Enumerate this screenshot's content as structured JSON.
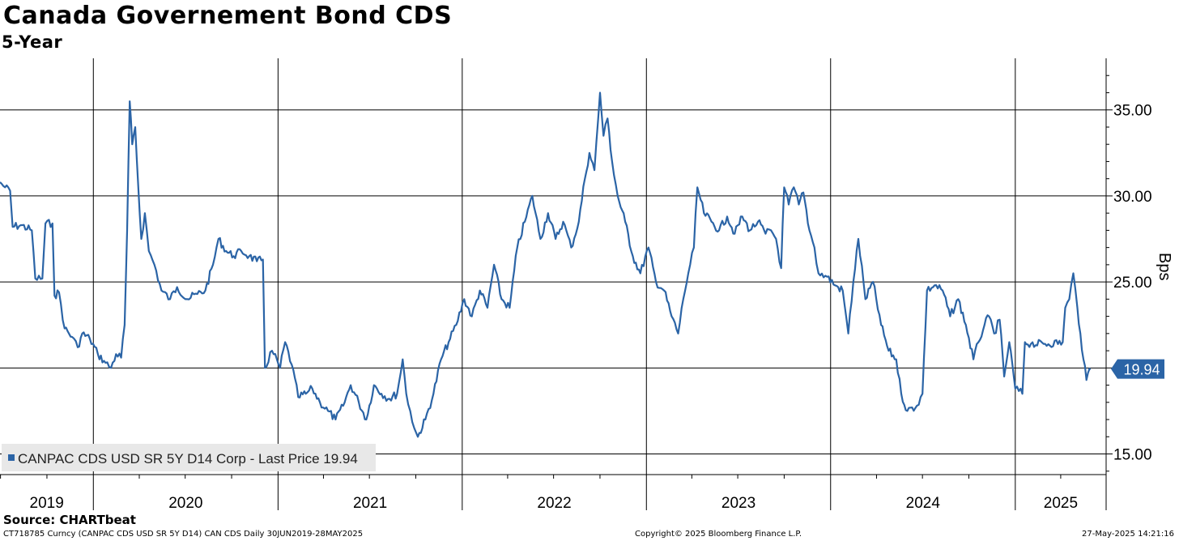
{
  "title": "Canada Governement Bond CDS",
  "subtitle": "5-Year",
  "source": "Source: CHARTbeat",
  "footer": {
    "left": "CT718785 Curncy (CANPAC CDS USD SR 5Y D14) CAN CDS  Daily 30JUN2019-28MAY2025",
    "center": "Copyright© 2025 Bloomberg Finance L.P.",
    "right": "27-May-2025 14:21:16"
  },
  "colors": {
    "series": "#2b64a6",
    "last_price_tag": "#2b64a6",
    "grid": "#000000"
  },
  "chart_data": {
    "type": "line",
    "ylabel": "Bps",
    "ylim": [
      13.8,
      38
    ],
    "yticks": [
      15,
      20,
      25,
      30,
      35
    ],
    "ytick_labels": [
      "15.00",
      "",
      "25.00",
      "30.00",
      "35.00"
    ],
    "xlim": [
      "2019-06-30",
      "2025-06-30"
    ],
    "year_labels": [
      "2019",
      "2020",
      "2021",
      "2022",
      "2023",
      "2024",
      "2025"
    ],
    "grid": true,
    "legend_position": "bottom-left",
    "legend": "CANPAC CDS USD SR 5Y D14 Corp - Last Price 19.94",
    "last_price_label": "19.94",
    "last_price": 19.94,
    "series": [
      {
        "name": "CANPAC CDS USD SR 5Y D14 Corp - Last Price",
        "points": [
          [
            "2019-06-30",
            30.8
          ],
          [
            "2019-07-10",
            30.5
          ],
          [
            "2019-07-20",
            30.3
          ],
          [
            "2019-07-25",
            28.2
          ],
          [
            "2019-08-10",
            28.3
          ],
          [
            "2019-09-01",
            28.0
          ],
          [
            "2019-09-08",
            25.2
          ],
          [
            "2019-09-22",
            25.2
          ],
          [
            "2019-09-28",
            28.4
          ],
          [
            "2019-10-12",
            28.4
          ],
          [
            "2019-10-16",
            24.2
          ],
          [
            "2019-10-25",
            24.4
          ],
          [
            "2019-11-05",
            22.3
          ],
          [
            "2019-11-20",
            21.8
          ],
          [
            "2019-12-01",
            21.2
          ],
          [
            "2019-12-10",
            22.0
          ],
          [
            "2019-12-25",
            21.7
          ],
          [
            "2020-01-10",
            20.8
          ],
          [
            "2020-01-25",
            20.3
          ],
          [
            "2020-02-05",
            20.0
          ],
          [
            "2020-02-15",
            20.8
          ],
          [
            "2020-02-25",
            20.6
          ],
          [
            "2020-03-03",
            22.5
          ],
          [
            "2020-03-08",
            28.0
          ],
          [
            "2020-03-13",
            35.5
          ],
          [
            "2020-03-18",
            33.0
          ],
          [
            "2020-03-24",
            34.0
          ],
          [
            "2020-03-30",
            30.5
          ],
          [
            "2020-04-05",
            27.5
          ],
          [
            "2020-04-12",
            29.0
          ],
          [
            "2020-04-20",
            26.8
          ],
          [
            "2020-05-01",
            26.0
          ],
          [
            "2020-05-15",
            24.5
          ],
          [
            "2020-06-01",
            24.0
          ],
          [
            "2020-06-15",
            24.7
          ],
          [
            "2020-07-05",
            24.0
          ],
          [
            "2020-07-25",
            24.3
          ],
          [
            "2020-08-10",
            24.5
          ],
          [
            "2020-08-25",
            26.0
          ],
          [
            "2020-09-05",
            27.5
          ],
          [
            "2020-09-20",
            26.8
          ],
          [
            "2020-10-05",
            26.5
          ],
          [
            "2020-10-20",
            26.8
          ],
          [
            "2020-11-05",
            26.5
          ],
          [
            "2020-11-20",
            26.2
          ],
          [
            "2020-12-02",
            26.3
          ],
          [
            "2020-12-06",
            20.0
          ],
          [
            "2020-12-20",
            21.0
          ],
          [
            "2021-01-05",
            20.0
          ],
          [
            "2021-01-15",
            21.5
          ],
          [
            "2021-01-28",
            20.2
          ],
          [
            "2021-02-10",
            18.3
          ],
          [
            "2021-02-25",
            18.5
          ],
          [
            "2021-03-10",
            18.8
          ],
          [
            "2021-03-25",
            18.0
          ],
          [
            "2021-04-10",
            17.5
          ],
          [
            "2021-04-25",
            17.0
          ],
          [
            "2021-05-10",
            17.8
          ],
          [
            "2021-05-25",
            19.0
          ],
          [
            "2021-06-10",
            18.0
          ],
          [
            "2021-06-25",
            17.0
          ],
          [
            "2021-07-10",
            19.0
          ],
          [
            "2021-07-25",
            18.5
          ],
          [
            "2021-08-10",
            18.2
          ],
          [
            "2021-08-25",
            18.5
          ],
          [
            "2021-09-05",
            20.5
          ],
          [
            "2021-09-12",
            18.5
          ],
          [
            "2021-09-20",
            17.5
          ],
          [
            "2021-09-28",
            16.5
          ],
          [
            "2021-10-05",
            16.0
          ],
          [
            "2021-10-20",
            17.0
          ],
          [
            "2021-11-05",
            18.5
          ],
          [
            "2021-11-20",
            20.5
          ],
          [
            "2021-12-05",
            21.5
          ],
          [
            "2021-12-20",
            22.5
          ],
          [
            "2022-01-05",
            24.0
          ],
          [
            "2022-01-20",
            23.0
          ],
          [
            "2022-02-05",
            24.5
          ],
          [
            "2022-02-20",
            23.5
          ],
          [
            "2022-03-05",
            26.0
          ],
          [
            "2022-03-20",
            24.0
          ],
          [
            "2022-04-05",
            23.5
          ],
          [
            "2022-04-20",
            27.0
          ],
          [
            "2022-05-05",
            28.5
          ],
          [
            "2022-05-20",
            30.0
          ],
          [
            "2022-06-05",
            27.5
          ],
          [
            "2022-06-20",
            29.0
          ],
          [
            "2022-07-05",
            27.5
          ],
          [
            "2022-07-20",
            28.5
          ],
          [
            "2022-08-05",
            27.0
          ],
          [
            "2022-08-20",
            28.5
          ],
          [
            "2022-09-01",
            31.0
          ],
          [
            "2022-09-10",
            32.5
          ],
          [
            "2022-09-20",
            31.5
          ],
          [
            "2022-10-01",
            36.0
          ],
          [
            "2022-10-08",
            33.5
          ],
          [
            "2022-10-16",
            34.5
          ],
          [
            "2022-10-25",
            32.0
          ],
          [
            "2022-11-05",
            30.0
          ],
          [
            "2022-11-20",
            28.5
          ],
          [
            "2022-12-05",
            26.5
          ],
          [
            "2022-12-20",
            25.5
          ],
          [
            "2023-01-05",
            27.0
          ],
          [
            "2023-01-20",
            25.0
          ],
          [
            "2023-02-05",
            24.5
          ],
          [
            "2023-02-20",
            23.0
          ],
          [
            "2023-03-05",
            22.0
          ],
          [
            "2023-03-15",
            24.0
          ],
          [
            "2023-03-25",
            25.5
          ],
          [
            "2023-04-05",
            27.0
          ],
          [
            "2023-04-12",
            30.5
          ],
          [
            "2023-04-25",
            29.0
          ],
          [
            "2023-05-10",
            28.5
          ],
          [
            "2023-05-25",
            28.0
          ],
          [
            "2023-06-10",
            28.8
          ],
          [
            "2023-06-25",
            27.8
          ],
          [
            "2023-07-10",
            28.8
          ],
          [
            "2023-07-25",
            28.0
          ],
          [
            "2023-08-10",
            28.5
          ],
          [
            "2023-08-25",
            27.8
          ],
          [
            "2023-09-05",
            28.0
          ],
          [
            "2023-09-15",
            27.5
          ],
          [
            "2023-09-25",
            25.8
          ],
          [
            "2023-10-01",
            30.5
          ],
          [
            "2023-10-10",
            29.5
          ],
          [
            "2023-10-20",
            30.5
          ],
          [
            "2023-10-30",
            29.5
          ],
          [
            "2023-11-08",
            30.2
          ],
          [
            "2023-11-20",
            28.0
          ],
          [
            "2023-11-30",
            27.0
          ],
          [
            "2023-12-08",
            25.5
          ],
          [
            "2023-12-25",
            25.3
          ],
          [
            "2024-01-10",
            24.8
          ],
          [
            "2024-01-25",
            24.5
          ],
          [
            "2024-02-05",
            22.0
          ],
          [
            "2024-02-15",
            25.0
          ],
          [
            "2024-02-25",
            27.5
          ],
          [
            "2024-03-10",
            24.0
          ],
          [
            "2024-03-25",
            25.0
          ],
          [
            "2024-04-10",
            22.5
          ],
          [
            "2024-04-25",
            21.0
          ],
          [
            "2024-05-10",
            20.5
          ],
          [
            "2024-05-20",
            18.5
          ],
          [
            "2024-06-01",
            17.5
          ],
          [
            "2024-06-20",
            17.8
          ],
          [
            "2024-07-01",
            18.5
          ],
          [
            "2024-07-10",
            24.5
          ],
          [
            "2024-07-25",
            24.8
          ],
          [
            "2024-08-10",
            24.5
          ],
          [
            "2024-08-25",
            23.0
          ],
          [
            "2024-09-10",
            24.0
          ],
          [
            "2024-09-25",
            22.5
          ],
          [
            "2024-10-10",
            20.5
          ],
          [
            "2024-10-20",
            21.5
          ],
          [
            "2024-11-01",
            22.5
          ],
          [
            "2024-11-10",
            23.0
          ],
          [
            "2024-11-20",
            22.0
          ],
          [
            "2024-12-01",
            22.8
          ],
          [
            "2024-12-10",
            19.5
          ],
          [
            "2024-12-20",
            21.5
          ],
          [
            "2025-01-01",
            18.8
          ],
          [
            "2025-01-15",
            18.5
          ],
          [
            "2025-01-20",
            21.5
          ],
          [
            "2025-02-01",
            21.4
          ],
          [
            "2025-03-01",
            21.4
          ],
          [
            "2025-04-05",
            21.5
          ],
          [
            "2025-04-10",
            23.5
          ],
          [
            "2025-04-18",
            24.0
          ],
          [
            "2025-04-26",
            25.5
          ],
          [
            "2025-05-04",
            23.5
          ],
          [
            "2025-05-10",
            22.0
          ],
          [
            "2025-05-16",
            20.5
          ],
          [
            "2025-05-22",
            19.3
          ],
          [
            "2025-05-28",
            19.94
          ]
        ]
      }
    ]
  }
}
